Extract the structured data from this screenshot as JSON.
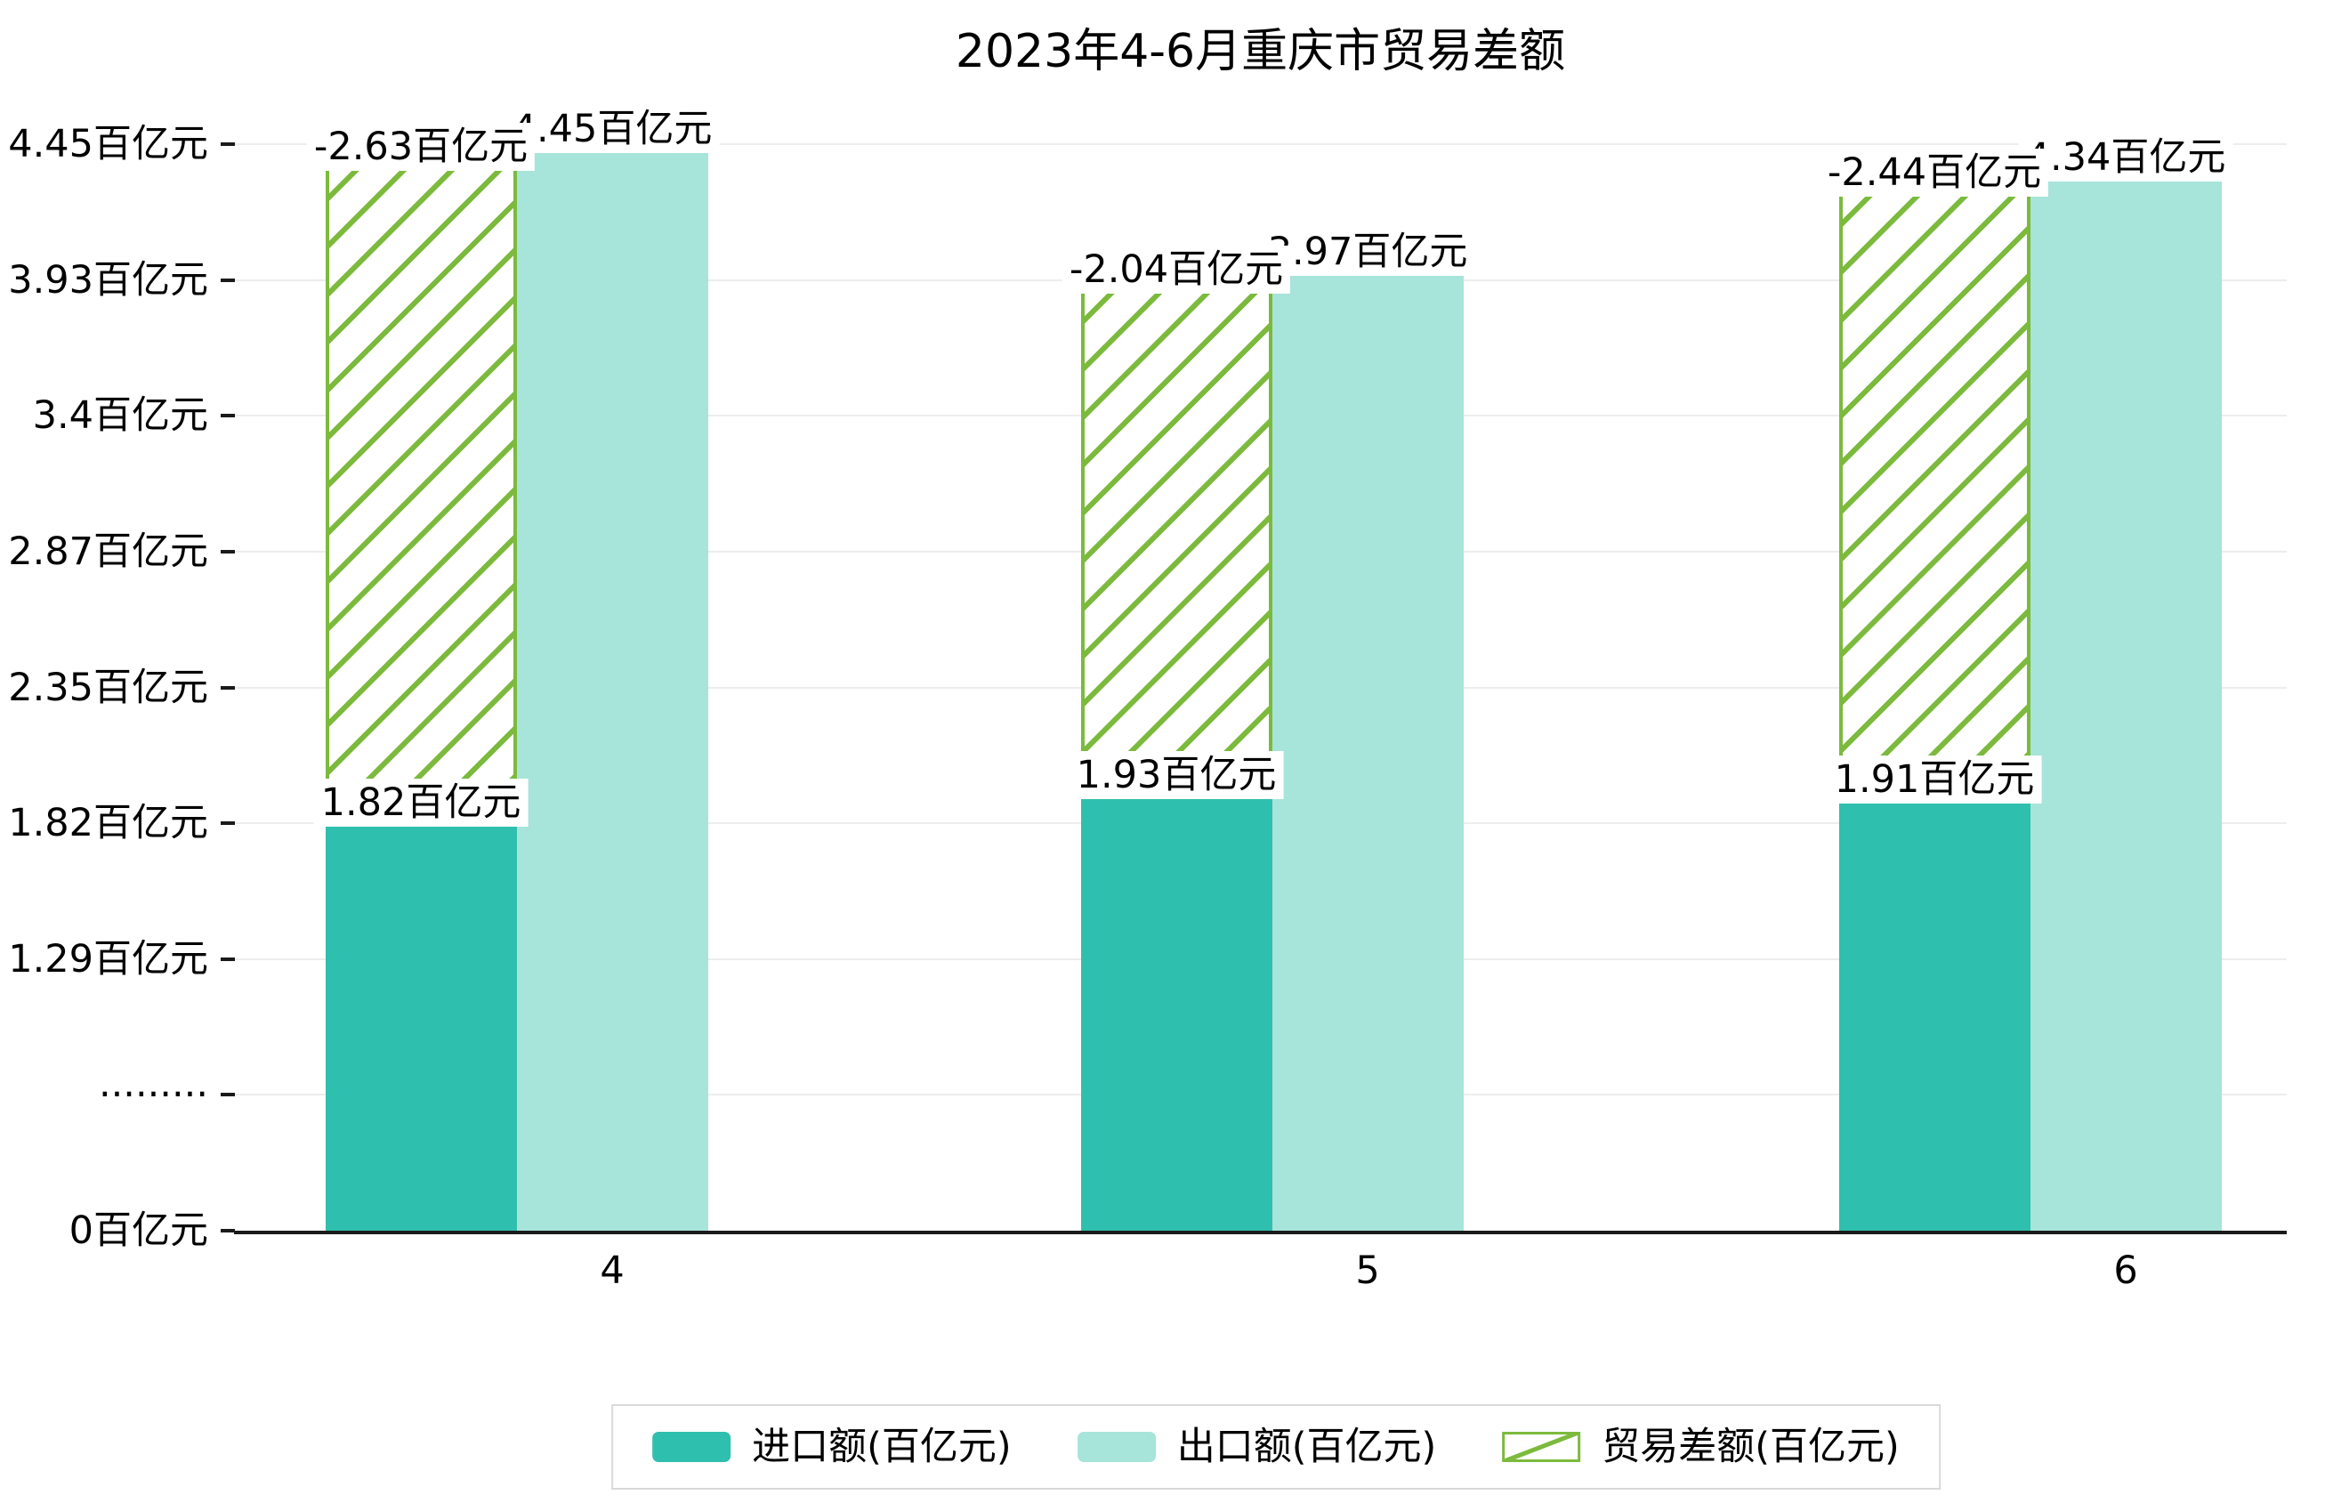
{
  "title": "2023年4-6月重庆市贸易差额",
  "chart_data": {
    "type": "bar",
    "title": "2023年4-6月重庆市贸易差额",
    "categories": [
      "4",
      "5",
      "6"
    ],
    "series": [
      {
        "name": "进口额(百亿元)",
        "role": "import",
        "style": "solid",
        "color": "#2FBFAE",
        "values": [
          1.82,
          1.93,
          1.91
        ],
        "labels": [
          "1.82百亿元",
          "1.93百亿元",
          "1.91百亿元"
        ]
      },
      {
        "name": "出口额(百亿元)",
        "role": "export",
        "style": "solid",
        "color": "#A7E4DA",
        "values": [
          4.45,
          3.97,
          4.34
        ],
        "labels": [
          "4.45百亿元",
          "3.97百亿元",
          "4.34百亿元"
        ]
      },
      {
        "name": "贸易差额(百亿元)",
        "role": "balance",
        "style": "hatched",
        "color": "#7CBA3D",
        "values": [
          -2.63,
          -2.04,
          -2.44
        ],
        "labels": [
          "-2.63百亿元",
          "-2.04百亿元",
          "-2.44百亿元"
        ]
      }
    ],
    "y_ticks": [
      "0百亿元",
      "·········",
      "1.29百亿元",
      "1.82百亿元",
      "2.35百亿元",
      "2.87百亿元",
      "3.4百亿元",
      "3.93百亿元",
      "4.45百亿元"
    ],
    "y_tick_values": [
      0,
      null,
      1.29,
      1.82,
      2.35,
      2.87,
      3.4,
      3.93,
      4.45
    ],
    "axis_break_between": [
      0,
      1.29
    ],
    "ylim": [
      0,
      4.45
    ],
    "unit": "百亿元",
    "grid": true,
    "legend_position": "bottom"
  },
  "legend": {
    "items": [
      {
        "label": "进口额(百亿元)",
        "swatch": "solid",
        "color": "#2FBFAE"
      },
      {
        "label": "出口额(百亿元)",
        "swatch": "solid",
        "color": "#A7E4DA"
      },
      {
        "label": "贸易差额(百亿元)",
        "swatch": "hatched",
        "color": "#7CBA3D"
      }
    ]
  },
  "colors": {
    "import": "#2FBFAE",
    "export": "#A7E4DA",
    "balance": "#7CBA3D",
    "axis": "#1a1a1a",
    "grid": "#ededed",
    "label_bg": "#ffffff",
    "text": "#000000"
  }
}
